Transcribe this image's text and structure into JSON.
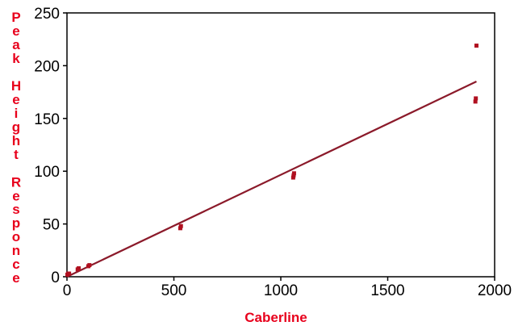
{
  "chart_data": {
    "type": "scatter",
    "xlabel": "Caberline",
    "ylabel": "Peak Height Responce",
    "xlim": [
      0,
      2000
    ],
    "ylim": [
      0,
      250
    ],
    "x_ticks": [
      "0",
      "500",
      "1000",
      "1500",
      "2000"
    ],
    "y_ticks": [
      "0",
      "50",
      "100",
      "150",
      "200",
      "250"
    ],
    "grid": false,
    "legend": "none",
    "colors": {
      "points": "#b01020",
      "fit_line": "#8b1a2a",
      "axis_title": "#e8001c",
      "frame": "#000000"
    },
    "series": [
      {
        "type": "scatter",
        "points": [
          {
            "x": 2,
            "y": 2
          },
          {
            "x": 6,
            "y": 3
          },
          {
            "x": 10,
            "y": 3
          },
          {
            "x": 50,
            "y": 7
          },
          {
            "x": 55,
            "y": 8
          },
          {
            "x": 100,
            "y": 10
          },
          {
            "x": 105,
            "y": 11
          },
          {
            "x": 530,
            "y": 46
          },
          {
            "x": 533,
            "y": 48
          },
          {
            "x": 1058,
            "y": 94
          },
          {
            "x": 1060,
            "y": 96
          },
          {
            "x": 1062,
            "y": 98
          },
          {
            "x": 1910,
            "y": 166
          },
          {
            "x": 1912,
            "y": 169
          },
          {
            "x": 1915,
            "y": 219
          }
        ]
      },
      {
        "type": "line",
        "points": [
          {
            "x": 0,
            "y": 0
          },
          {
            "x": 1915,
            "y": 185
          }
        ]
      }
    ]
  }
}
